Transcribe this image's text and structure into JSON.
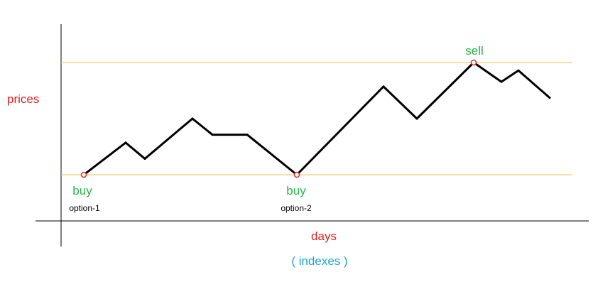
{
  "labels": {
    "y_axis": "prices",
    "x_axis": "days",
    "x_axis_note": "( indexes )",
    "buy_1": "buy",
    "option_1": "option-1",
    "buy_2": "buy",
    "option_2": "option-2",
    "sell": "sell"
  },
  "colors": {
    "axis": "#000000",
    "price_line": "#000000",
    "guide_line": "#f0c24a",
    "marker": "#e03030",
    "axis_label": "#e02020",
    "buy_sell": "#2db34a",
    "option": "#000000",
    "index_note": "#1fa3d6"
  },
  "chart_data": {
    "type": "line",
    "title": "",
    "xlabel": "days",
    "ylabel": "prices",
    "series": [
      {
        "name": "",
        "values": [
          1,
          3,
          2,
          4.5,
          3.5,
          3.5,
          1,
          6.5,
          4.5,
          8,
          6.8,
          7.5,
          5.8
        ]
      }
    ],
    "reference_lines": [
      1,
      8
    ],
    "markers": [
      {
        "index": 0,
        "type": "buy",
        "label": "buy",
        "note": "option-1"
      },
      {
        "index": 6,
        "type": "buy",
        "label": "buy",
        "note": "option-2"
      },
      {
        "index": 9,
        "type": "sell",
        "label": "sell",
        "note": ""
      }
    ],
    "grid": false
  }
}
